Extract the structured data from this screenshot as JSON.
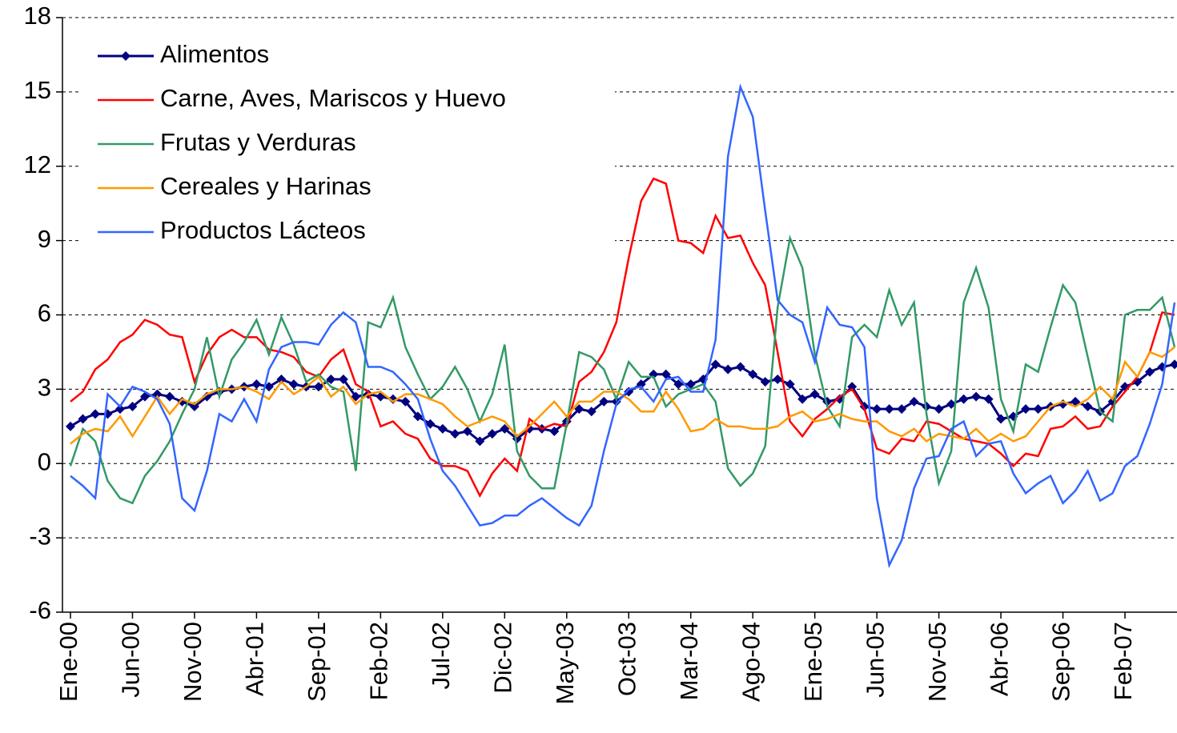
{
  "chart_data": {
    "type": "line",
    "categories": [
      "Ene-00",
      null,
      null,
      null,
      null,
      "Jun-00",
      null,
      null,
      null,
      null,
      "Nov-00",
      null,
      null,
      null,
      null,
      "Abr-01",
      null,
      null,
      null,
      null,
      "Sep-01",
      null,
      null,
      null,
      null,
      "Feb-02",
      null,
      null,
      null,
      null,
      "Jul-02",
      null,
      null,
      null,
      null,
      "Dic-02",
      null,
      null,
      null,
      null,
      "May-03",
      null,
      null,
      null,
      null,
      "Oct-03",
      null,
      null,
      null,
      null,
      "Mar-04",
      null,
      null,
      null,
      null,
      "Ago-04",
      null,
      null,
      null,
      null,
      "Ene-05",
      null,
      null,
      null,
      null,
      "Jun-05",
      null,
      null,
      null,
      null,
      "Nov-05",
      null,
      null,
      null,
      null,
      "Abr-06",
      null,
      null,
      null,
      null,
      "Sep-06",
      null,
      null,
      null,
      null,
      "Feb-07",
      null,
      null,
      null,
      null
    ],
    "series": [
      {
        "name": "Alimentos",
        "color": "#000080",
        "marker": "diamond",
        "values": [
          1.5,
          1.8,
          2.0,
          2.0,
          2.2,
          2.3,
          2.7,
          2.8,
          2.7,
          2.5,
          2.3,
          2.7,
          2.9,
          3.0,
          3.1,
          3.2,
          3.1,
          3.4,
          3.2,
          3.1,
          3.1,
          3.4,
          3.4,
          2.7,
          2.8,
          2.7,
          2.6,
          2.5,
          1.9,
          1.6,
          1.4,
          1.2,
          1.3,
          0.9,
          1.2,
          1.4,
          1.0,
          1.4,
          1.4,
          1.3,
          1.7,
          2.2,
          2.1,
          2.5,
          2.5,
          2.9,
          3.2,
          3.6,
          3.6,
          3.2,
          3.2,
          3.4,
          4.0,
          3.8,
          3.9,
          3.6,
          3.3,
          3.4,
          3.2,
          2.6,
          2.8,
          2.5,
          2.6,
          3.1,
          2.3,
          2.2,
          2.2,
          2.2,
          2.5,
          2.3,
          2.2,
          2.4,
          2.6,
          2.7,
          2.6,
          1.8,
          1.9,
          2.2,
          2.2,
          2.3,
          2.4,
          2.5,
          2.3,
          2.1,
          2.5,
          3.1,
          3.3,
          3.7,
          3.9,
          4.0
        ]
      },
      {
        "name": "Carne, Aves, Mariscos y Huevo",
        "color": "#ff0000",
        "values": [
          2.5,
          2.9,
          3.8,
          4.2,
          4.9,
          5.2,
          5.8,
          5.6,
          5.2,
          5.1,
          3.3,
          4.4,
          5.1,
          5.4,
          5.1,
          5.1,
          4.6,
          4.5,
          4.3,
          3.7,
          3.5,
          4.2,
          4.6,
          3.2,
          2.9,
          1.5,
          1.7,
          1.2,
          1.0,
          0.2,
          -0.1,
          -0.1,
          -0.3,
          -1.3,
          -0.4,
          0.2,
          -0.3,
          1.8,
          1.4,
          1.6,
          1.5,
          3.3,
          3.7,
          4.5,
          5.7,
          8.3,
          10.6,
          11.5,
          11.3,
          9.0,
          8.9,
          8.5,
          10.0,
          9.1,
          9.2,
          8.1,
          7.2,
          4.5,
          1.7,
          1.1,
          1.8,
          2.2,
          2.7,
          3.0,
          2.2,
          0.6,
          0.4,
          1.0,
          0.9,
          1.7,
          1.6,
          1.3,
          1.0,
          0.9,
          0.8,
          0.4,
          -0.1,
          0.4,
          0.3,
          1.4,
          1.5,
          1.9,
          1.4,
          1.5,
          2.3,
          2.9,
          3.5,
          4.5,
          6.1,
          6.0
        ]
      },
      {
        "name": "Frutas y Verduras",
        "color": "#339966",
        "values": [
          -0.1,
          1.4,
          0.9,
          -0.7,
          -1.4,
          -1.6,
          -0.5,
          0.1,
          0.9,
          2.0,
          3.0,
          5.1,
          2.7,
          4.2,
          4.9,
          5.8,
          4.4,
          5.9,
          4.8,
          3.3,
          3.6,
          3.1,
          2.9,
          -0.3,
          5.7,
          5.5,
          6.7,
          4.7,
          3.6,
          2.6,
          3.1,
          3.9,
          3.0,
          1.7,
          2.8,
          4.8,
          0.5,
          -0.5,
          -1.0,
          -1.0,
          1.6,
          4.5,
          4.3,
          3.8,
          2.6,
          4.1,
          3.5,
          3.5,
          2.3,
          2.8,
          3.0,
          3.2,
          2.5,
          -0.2,
          -0.9,
          -0.4,
          0.7,
          6.3,
          9.1,
          7.9,
          4.4,
          2.3,
          1.5,
          5.1,
          5.6,
          5.1,
          7.0,
          5.6,
          6.5,
          2.0,
          -0.8,
          0.5,
          6.5,
          7.9,
          6.3,
          2.6,
          1.3,
          4.0,
          3.7,
          5.5,
          7.2,
          6.5,
          4.3,
          2.1,
          1.7,
          6.0,
          6.2,
          6.2,
          6.7,
          4.7
        ]
      },
      {
        "name": "Cereales y Harinas",
        "color": "#ff9900",
        "values": [
          0.8,
          1.2,
          1.4,
          1.3,
          1.9,
          1.1,
          1.9,
          2.7,
          2.0,
          2.6,
          2.4,
          2.8,
          3.0,
          3.0,
          3.1,
          2.9,
          2.6,
          3.3,
          2.8,
          3.1,
          3.5,
          2.7,
          3.1,
          2.4,
          2.8,
          2.9,
          2.5,
          2.8,
          2.8,
          2.6,
          2.4,
          1.9,
          1.5,
          1.7,
          1.9,
          1.7,
          1.1,
          1.5,
          2.0,
          2.5,
          1.9,
          2.5,
          2.5,
          2.9,
          2.9,
          2.6,
          2.1,
          2.1,
          2.9,
          2.2,
          1.3,
          1.4,
          1.8,
          1.5,
          1.5,
          1.4,
          1.4,
          1.5,
          1.9,
          2.1,
          1.7,
          1.8,
          2.0,
          1.8,
          1.7,
          1.7,
          1.3,
          1.1,
          1.4,
          0.9,
          1.2,
          1.1,
          1.0,
          1.4,
          0.9,
          1.2,
          0.9,
          1.1,
          1.7,
          2.3,
          2.5,
          2.3,
          2.6,
          3.1,
          2.6,
          4.1,
          3.5,
          4.5,
          4.3,
          4.7
        ]
      },
      {
        "name": "Productos Lácteos",
        "color": "#3366ff",
        "values": [
          -0.5,
          -0.9,
          -1.4,
          2.8,
          2.3,
          3.1,
          2.9,
          2.6,
          1.6,
          -1.4,
          -1.9,
          -0.3,
          2.0,
          1.7,
          2.6,
          1.7,
          3.8,
          4.7,
          4.9,
          4.9,
          4.8,
          5.6,
          6.1,
          5.7,
          3.9,
          3.9,
          3.7,
          3.2,
          2.6,
          1.0,
          -0.3,
          -0.9,
          -1.7,
          -2.5,
          -2.4,
          -2.1,
          -2.1,
          -1.7,
          -1.4,
          -1.8,
          -2.2,
          -2.5,
          -1.7,
          0.5,
          2.4,
          3.0,
          3.1,
          2.5,
          3.4,
          3.5,
          2.9,
          2.9,
          5.0,
          12.4,
          15.2,
          14.0,
          10.2,
          6.6,
          6.0,
          5.7,
          4.1,
          6.3,
          5.6,
          5.5,
          4.7,
          -1.4,
          -4.1,
          -3.1,
          -1.0,
          0.2,
          0.3,
          1.4,
          1.7,
          0.3,
          0.8,
          0.9,
          -0.4,
          -1.2,
          -0.8,
          -0.5,
          -1.6,
          -1.1,
          -0.3,
          -1.5,
          -1.2,
          -0.1,
          0.3,
          1.6,
          3.2,
          6.5
        ]
      }
    ],
    "ylim": [
      -6,
      18
    ],
    "yticks": [
      -6,
      -3,
      0,
      3,
      6,
      9,
      12,
      15,
      18
    ],
    "grid": true,
    "legend": "upper left"
  }
}
